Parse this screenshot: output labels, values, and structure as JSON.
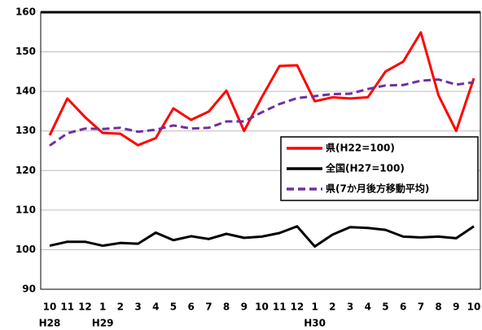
{
  "chart_data": {
    "type": "line",
    "categories": [
      "10",
      "11",
      "12",
      "1",
      "2",
      "3",
      "4",
      "5",
      "6",
      "7",
      "8",
      "9",
      "10",
      "11",
      "12",
      "1",
      "2",
      "3",
      "4",
      "5",
      "6",
      "7",
      "8",
      "9",
      "10"
    ],
    "year_labels": [
      "H28",
      null,
      null,
      "H29",
      null,
      null,
      null,
      null,
      null,
      null,
      null,
      null,
      null,
      null,
      null,
      "H30",
      null,
      null,
      null,
      null,
      null,
      null,
      null,
      null,
      null
    ],
    "series": [
      {
        "name": "県(H22=100)",
        "color": "#ff0000",
        "dash": false,
        "values": [
          128.9,
          138.2,
          133.5,
          129.5,
          129.3,
          126.4,
          128.2,
          135.7,
          132.8,
          134.9,
          140.2,
          130,
          138.5,
          146.4,
          146.6,
          137.5,
          138.5,
          138.2,
          138.5,
          145,
          147.5,
          154.9,
          139,
          130,
          143.3
        ]
      },
      {
        "name": "全国(H27=100)",
        "color": "#000000",
        "dash": false,
        "values": [
          101,
          102,
          102,
          101,
          101.7,
          101.5,
          104.3,
          102.4,
          103.4,
          102.7,
          104,
          103,
          103.3,
          104.2,
          105.9,
          100.8,
          103.8,
          105.7,
          105.5,
          105,
          103.3,
          103.1,
          103.3,
          102.9,
          105.9
        ]
      },
      {
        "name": "県(7か月後方移動平均)",
        "color": "#7030a0",
        "dash": true,
        "values": [
          126.3,
          129.4,
          130.6,
          130.5,
          130.8,
          129.8,
          130.3,
          131.4,
          130.6,
          130.8,
          132.4,
          132.4,
          134.7,
          136.8,
          138.3,
          138.8,
          139.3,
          139.4,
          140.6,
          141.5,
          141.6,
          142.7,
          143,
          141.7,
          142.3
        ]
      }
    ],
    "ylim": [
      90,
      160
    ],
    "yticks": [
      90,
      100,
      110,
      120,
      130,
      140,
      150,
      160
    ],
    "grid": true
  }
}
